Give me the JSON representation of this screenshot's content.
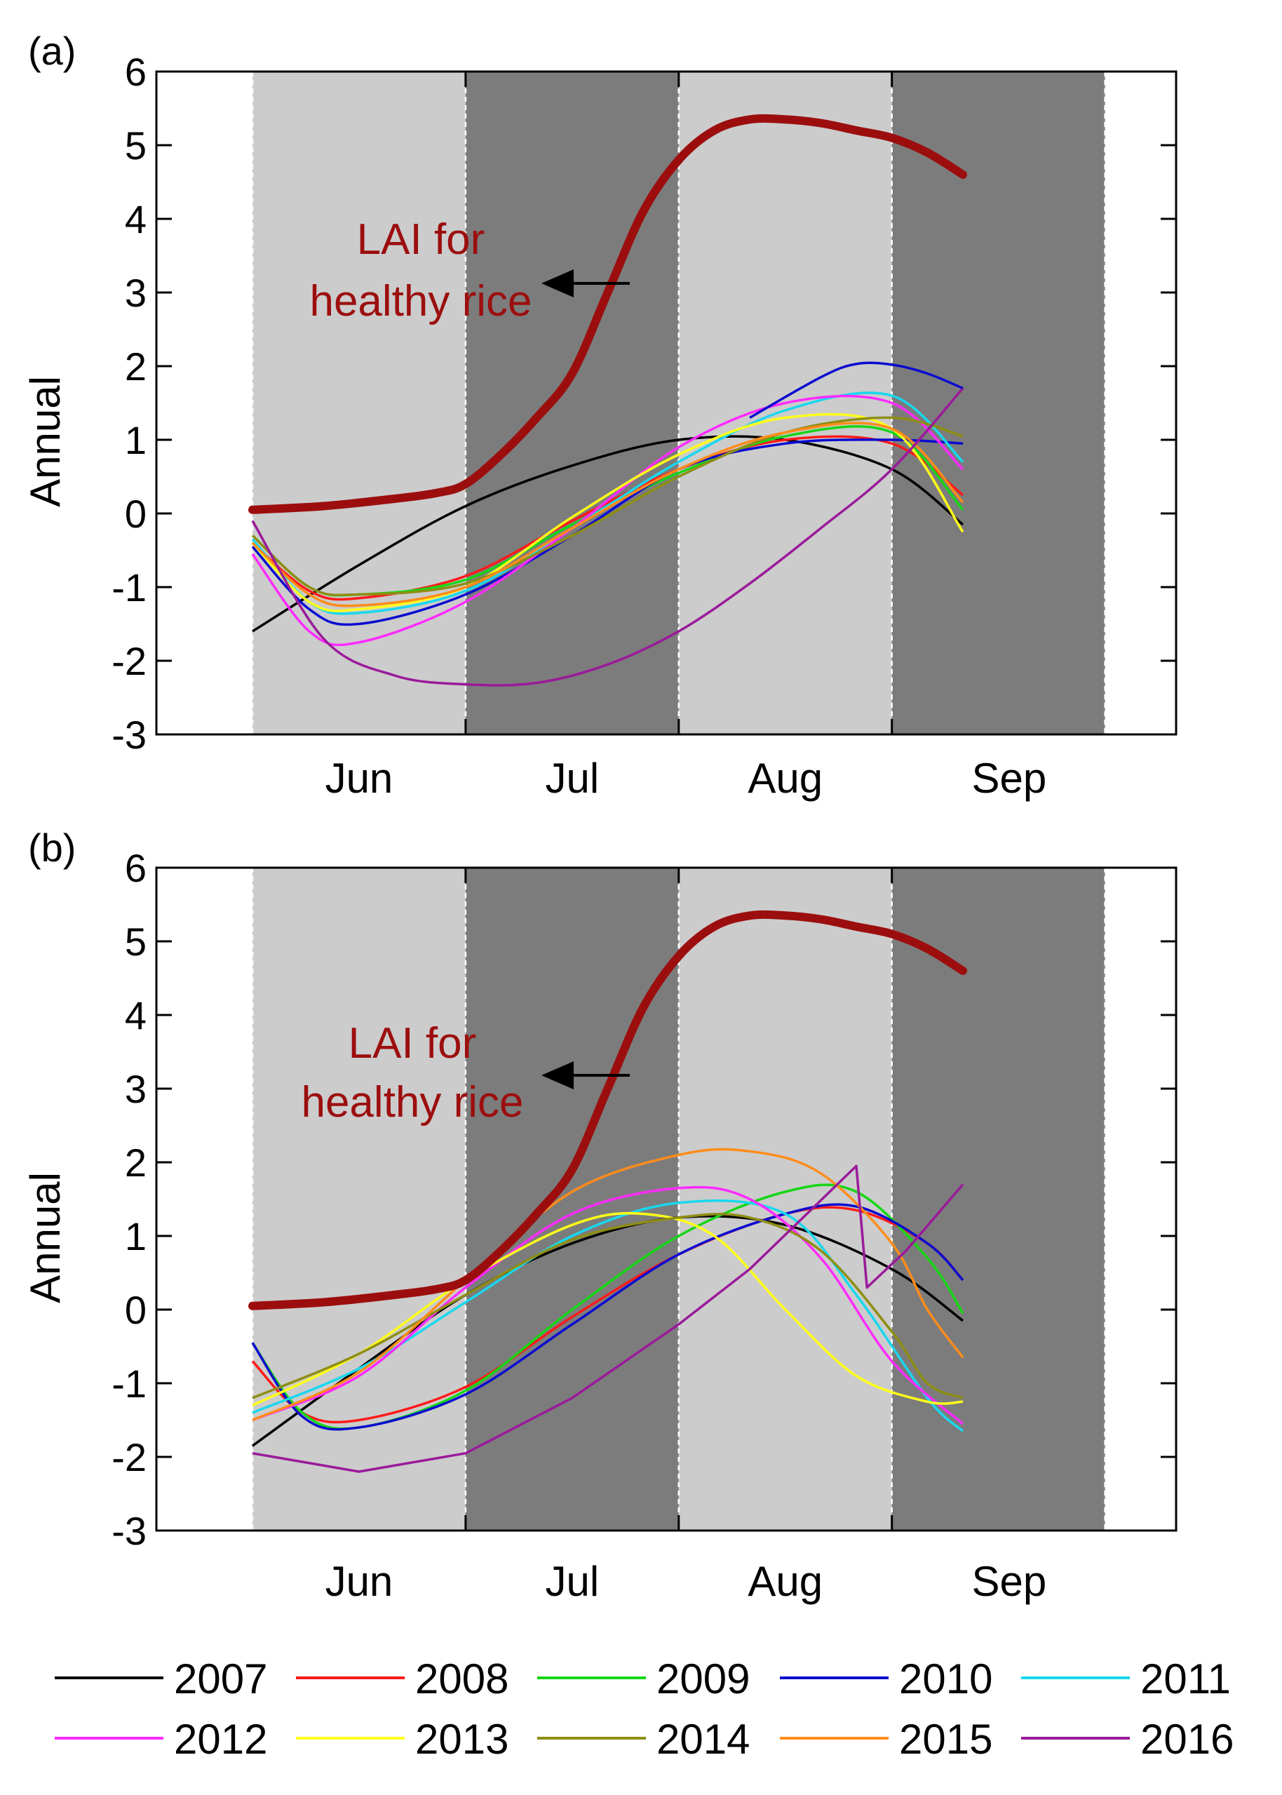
{
  "chart_data": [
    {
      "type": "line",
      "panel_label": "(a)",
      "ylabel": "Annual",
      "ylim": [
        -3,
        6
      ],
      "yticks": [
        "-3",
        "-2",
        "-1",
        "0",
        "1",
        "2",
        "3",
        "4",
        "5",
        "6"
      ],
      "xlim": [
        0,
        10
      ],
      "months": [
        {
          "label": "Jun",
          "x": 1.5
        },
        {
          "label": "Jul",
          "x": 4.5
        },
        {
          "label": "Aug",
          "x": 7.5
        },
        {
          "label": "Sep",
          "x": 10.65
        }
      ],
      "bands": [
        {
          "from": 0,
          "to": 3,
          "shade": "light"
        },
        {
          "from": 3,
          "to": 6,
          "shade": "dark"
        },
        {
          "from": 6,
          "to": 9,
          "shade": "light"
        },
        {
          "from": 9,
          "to": 12,
          "shade": "dark"
        }
      ],
      "lai": {
        "label_line1": "LAI for",
        "label_line2": "healthy rice",
        "color": "#9c0e0e",
        "x": [
          0,
          1,
          2,
          2.6,
          3,
          3.5,
          4,
          4.5,
          5,
          5.5,
          6,
          6.5,
          7,
          7.5,
          8,
          8.5,
          9,
          9.5,
          10
        ],
        "y": [
          0.05,
          0.1,
          0.2,
          0.28,
          0.4,
          0.8,
          1.3,
          1.9,
          3.0,
          4.1,
          4.8,
          5.2,
          5.35,
          5.35,
          5.3,
          5.2,
          5.1,
          4.9,
          4.6
        ]
      },
      "series": [
        {
          "name": "2007",
          "color": "#000000",
          "x": [
            0,
            1.5,
            3,
            4.5,
            6,
            7.5,
            9,
            10
          ],
          "y": [
            -1.6,
            -0.7,
            0.1,
            0.65,
            1.0,
            1.0,
            0.6,
            -0.15
          ]
        },
        {
          "name": "2008",
          "color": "#ff1a1a",
          "x": [
            0,
            0.8,
            1.5,
            3,
            4.5,
            6,
            7.5,
            9,
            10
          ],
          "y": [
            -0.4,
            -1.05,
            -1.15,
            -0.85,
            -0.1,
            0.6,
            1.0,
            0.95,
            0.25
          ]
        },
        {
          "name": "2009",
          "color": "#16d616",
          "x": [
            0,
            0.8,
            1.5,
            3,
            4.5,
            6,
            7.5,
            9,
            10
          ],
          "y": [
            -0.3,
            -1.0,
            -1.1,
            -0.9,
            -0.15,
            0.55,
            1.05,
            1.1,
            0.05
          ]
        },
        {
          "name": "2010",
          "color": "#0b0bd0",
          "x": [
            0,
            0.8,
            1.5,
            3,
            4.5,
            6,
            7.5,
            9,
            10
          ],
          "y": [
            -0.45,
            -1.3,
            -1.5,
            -1.1,
            -0.3,
            0.6,
            0.95,
            1.0,
            0.95
          ]
        },
        {
          "name": "2011",
          "color": "#18d8ee",
          "x": [
            0,
            0.8,
            1.5,
            3,
            4.5,
            6,
            7.5,
            9,
            10
          ],
          "y": [
            -0.35,
            -1.2,
            -1.35,
            -1.05,
            -0.2,
            0.7,
            1.4,
            1.6,
            0.7
          ]
        },
        {
          "name": "2012",
          "color": "#ff2bff",
          "x": [
            0,
            0.8,
            1.5,
            3,
            4.5,
            6,
            7.5,
            9,
            10
          ],
          "y": [
            -0.55,
            -1.6,
            -1.75,
            -1.2,
            -0.2,
            0.9,
            1.5,
            1.5,
            0.6
          ]
        },
        {
          "name": "2013",
          "color": "#ffff1a",
          "x": [
            0,
            0.8,
            1.5,
            3,
            4.5,
            6,
            7.5,
            9,
            10
          ],
          "y": [
            -0.4,
            -1.2,
            -1.3,
            -1.0,
            -0.05,
            0.8,
            1.3,
            1.15,
            -0.25
          ]
        },
        {
          "name": "2014",
          "color": "#8e8e14",
          "x": [
            0,
            0.8,
            1.5,
            3,
            4.5,
            6,
            7.5,
            9,
            10
          ],
          "y": [
            -0.3,
            -1.0,
            -1.1,
            -0.95,
            -0.3,
            0.5,
            1.1,
            1.3,
            1.05
          ]
        },
        {
          "name": "2015",
          "color": "#ff8c1a",
          "x": [
            0,
            0.8,
            1.5,
            3,
            4.5,
            6,
            7.5,
            9,
            10
          ],
          "y": [
            -0.4,
            -1.1,
            -1.25,
            -1.0,
            -0.2,
            0.6,
            1.1,
            1.15,
            0.15
          ]
        },
        {
          "name": "2016",
          "color": "#9a1a9a",
          "x": [
            0,
            1,
            2,
            3,
            4,
            5,
            6,
            7,
            8,
            9,
            10
          ],
          "y": [
            -0.1,
            -1.7,
            -2.2,
            -2.32,
            -2.3,
            -2.05,
            -1.6,
            -0.95,
            -0.2,
            0.6,
            1.7
          ]
        },
        {
          "name": "2010",
          "color": "#0b0bd0",
          "x": [
            7,
            8,
            8.5,
            9,
            9.5,
            10
          ],
          "y": [
            1.3,
            1.85,
            2.03,
            2.02,
            1.9,
            1.7
          ],
          "role": "upper-blue-arc"
        }
      ]
    },
    {
      "type": "line",
      "panel_label": "(b)",
      "ylabel": "Annual",
      "ylim": [
        -3,
        6
      ],
      "yticks": [
        "-3",
        "-2",
        "-1",
        "0",
        "1",
        "2",
        "3",
        "4",
        "5",
        "6"
      ],
      "xlim": [
        0,
        10
      ],
      "months": [
        {
          "label": "Jun",
          "x": 1.5
        },
        {
          "label": "Jul",
          "x": 4.5
        },
        {
          "label": "Aug",
          "x": 7.5
        },
        {
          "label": "Sep",
          "x": 10.65
        }
      ],
      "bands": [
        {
          "from": 0,
          "to": 3,
          "shade": "light"
        },
        {
          "from": 3,
          "to": 6,
          "shade": "dark"
        },
        {
          "from": 6,
          "to": 9,
          "shade": "light"
        },
        {
          "from": 9,
          "to": 12,
          "shade": "dark"
        }
      ],
      "lai": {
        "label_line1": "LAI for",
        "label_line2": "healthy rice",
        "color": "#9c0e0e",
        "x": [
          0,
          1,
          2,
          2.6,
          3,
          3.5,
          4,
          4.5,
          5,
          5.5,
          6,
          6.5,
          7,
          7.5,
          8,
          8.5,
          9,
          9.5,
          10
        ],
        "y": [
          0.05,
          0.1,
          0.2,
          0.28,
          0.4,
          0.8,
          1.3,
          1.9,
          3.0,
          4.1,
          4.8,
          5.2,
          5.35,
          5.35,
          5.3,
          5.2,
          5.1,
          4.9,
          4.6
        ]
      },
      "series": [
        {
          "name": "2007",
          "color": "#000000",
          "x": [
            0,
            1.5,
            3,
            4.5,
            6,
            7.5,
            9,
            10
          ],
          "y": [
            -1.85,
            -0.8,
            0.2,
            0.9,
            1.25,
            1.15,
            0.55,
            -0.15
          ]
        },
        {
          "name": "2008",
          "color": "#ff1a1a",
          "x": [
            0,
            0.7,
            1.5,
            3,
            4.5,
            6,
            7.5,
            8.5,
            9.5,
            10
          ],
          "y": [
            -0.7,
            -1.4,
            -1.5,
            -1.05,
            -0.1,
            0.75,
            1.3,
            1.35,
            0.9,
            0.4
          ]
        },
        {
          "name": "2009",
          "color": "#16d616",
          "x": [
            0,
            0.7,
            1.5,
            3,
            4.5,
            6,
            7.5,
            8.5,
            9.5,
            10
          ],
          "y": [
            -0.45,
            -1.4,
            -1.6,
            -1.1,
            0.0,
            1.0,
            1.6,
            1.6,
            0.7,
            -0.05
          ]
        },
        {
          "name": "2010",
          "color": "#0b0bd0",
          "x": [
            0,
            0.7,
            1.5,
            3,
            4.5,
            6,
            7.5,
            8.5,
            9.5,
            10
          ],
          "y": [
            -0.45,
            -1.45,
            -1.6,
            -1.15,
            -0.2,
            0.75,
            1.3,
            1.4,
            0.9,
            0.4
          ]
        },
        {
          "name": "2011",
          "color": "#18d8ee",
          "x": [
            0,
            1.5,
            3,
            4.5,
            6,
            7.5,
            8.5,
            9.5,
            10
          ],
          "y": [
            -1.4,
            -0.8,
            0.1,
            1.0,
            1.45,
            1.3,
            0.2,
            -1.2,
            -1.65
          ]
        },
        {
          "name": "2012",
          "color": "#ff2bff",
          "x": [
            0,
            1.5,
            3,
            4.5,
            6,
            7,
            8,
            9,
            10
          ],
          "y": [
            -1.5,
            -0.9,
            0.3,
            1.3,
            1.65,
            1.5,
            0.7,
            -0.7,
            -1.55
          ]
        },
        {
          "name": "2013",
          "color": "#ffff1a",
          "x": [
            0,
            1.5,
            3,
            4.5,
            5.5,
            6.5,
            7.5,
            8.5,
            9.5,
            10
          ],
          "y": [
            -1.3,
            -0.6,
            0.4,
            1.15,
            1.3,
            1.0,
            0.0,
            -0.9,
            -1.25,
            -1.25
          ]
        },
        {
          "name": "2014",
          "color": "#8e8e14",
          "x": [
            0,
            1.5,
            3,
            4.5,
            6,
            7,
            8,
            9,
            9.5,
            10
          ],
          "y": [
            -1.2,
            -0.6,
            0.2,
            0.95,
            1.25,
            1.25,
            0.8,
            -0.3,
            -1.0,
            -1.2
          ]
        },
        {
          "name": "2015",
          "color": "#ff8c1a",
          "x": [
            0,
            1.5,
            3,
            4.5,
            6,
            7,
            8,
            9,
            9.5,
            10
          ],
          "y": [
            -1.5,
            -0.85,
            0.4,
            1.6,
            2.1,
            2.15,
            1.85,
            0.9,
            0.0,
            -0.65
          ]
        },
        {
          "name": "2016",
          "color": "#9a1a9a",
          "x": [
            0,
            1.5,
            3,
            4.5,
            6,
            7,
            8.5,
            8.65,
            9.2,
            10
          ],
          "y": [
            -1.95,
            -2.2,
            -1.95,
            -1.2,
            -0.2,
            0.55,
            1.95,
            0.3,
            0.8,
            1.7
          ]
        }
      ]
    }
  ],
  "legend": [
    {
      "label": "2007",
      "color": "#000000"
    },
    {
      "label": "2008",
      "color": "#ff1a1a"
    },
    {
      "label": "2009",
      "color": "#16d616"
    },
    {
      "label": "2010",
      "color": "#0b0bd0"
    },
    {
      "label": "2011",
      "color": "#18d8ee"
    },
    {
      "label": "2012",
      "color": "#ff2bff"
    },
    {
      "label": "2013",
      "color": "#ffff1a"
    },
    {
      "label": "2014",
      "color": "#8e8e14"
    },
    {
      "label": "2015",
      "color": "#ff8c1a"
    },
    {
      "label": "2016",
      "color": "#9a1a9a"
    }
  ]
}
